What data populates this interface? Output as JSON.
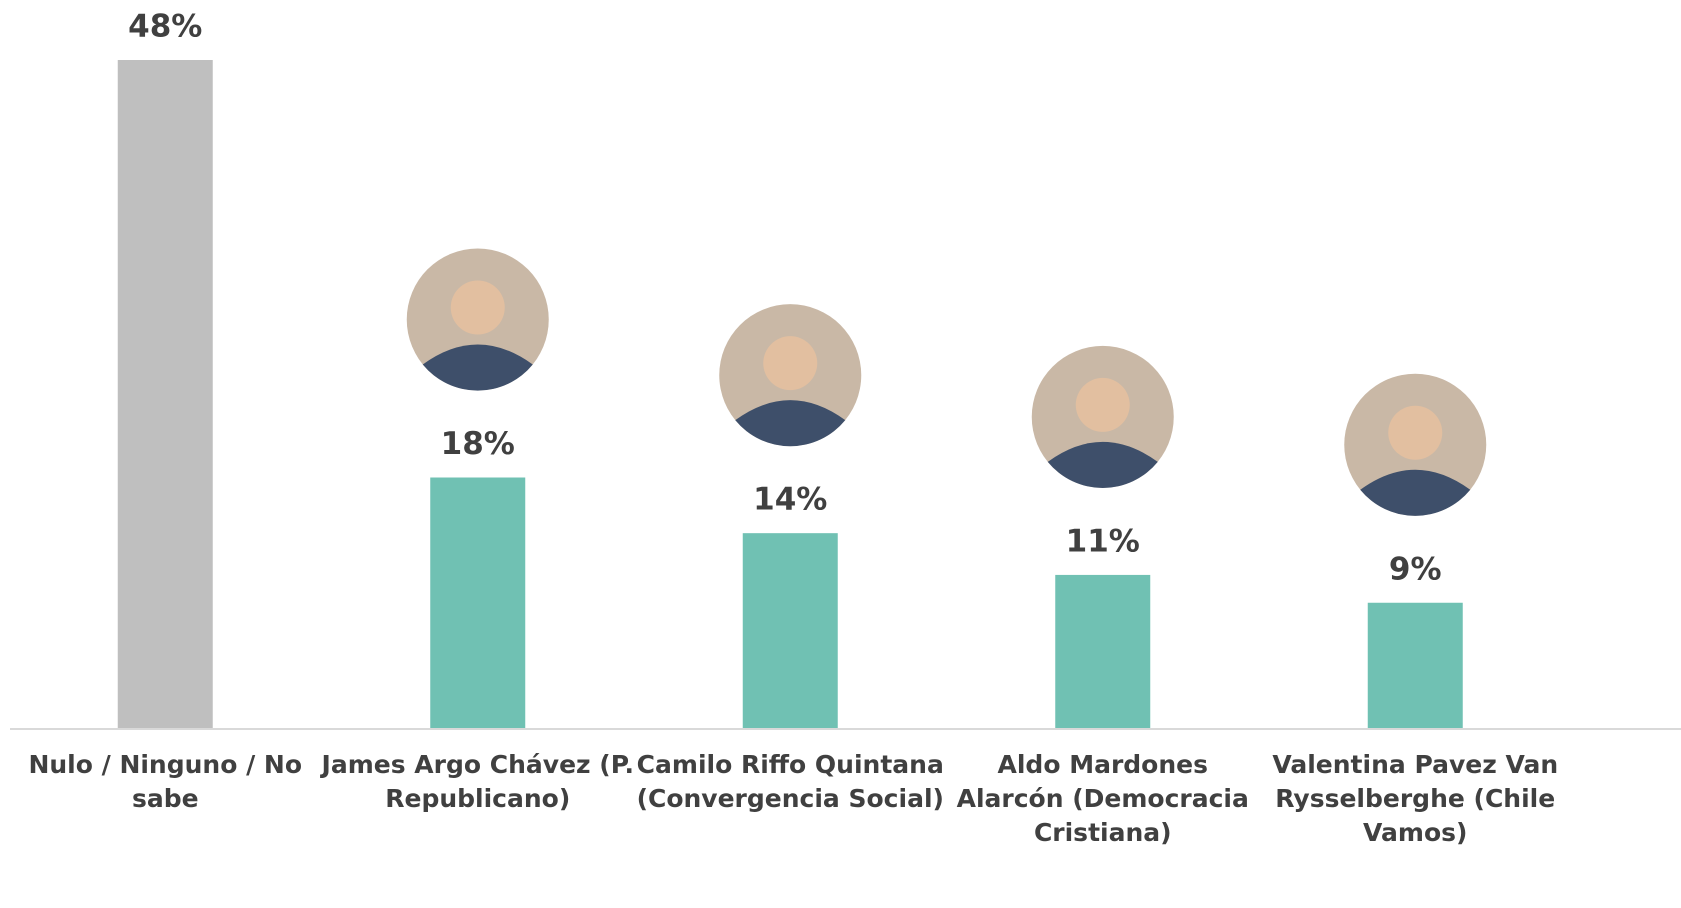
{
  "chart_data": {
    "type": "bar",
    "categories": [
      "Nulo / Ninguno / No sabe",
      "James Argo Chávez (P. Republicano)",
      "Camilo Riffo Quintana (Convergencia Social)",
      "Aldo Mardones Alarcón (Democracia Cristiana)",
      "Valentina Pavez Van Rysselberghe (Chile Vamos)"
    ],
    "values": [
      48,
      18,
      14,
      11,
      9
    ],
    "value_labels": [
      "48%",
      "18%",
      "14%",
      "11%",
      "9%"
    ],
    "colors": [
      "#bfbfbf",
      "#70c1b3",
      "#70c1b3",
      "#70c1b3",
      "#70c1b3"
    ]
  }
}
